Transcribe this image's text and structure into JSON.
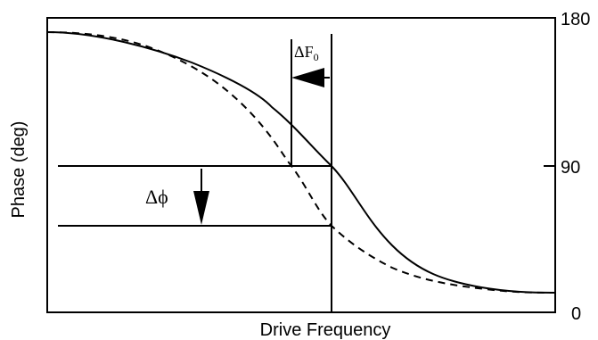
{
  "figure": {
    "y_axis_label": "Phase (deg)",
    "x_axis_label": "Drive Frequency",
    "right_ticks": [
      "180",
      "90",
      "0"
    ],
    "delta_f_label": "ΔF",
    "delta_f_subscript": "0",
    "delta_phi_label": "Δϕ"
  },
  "colors": {
    "stroke": "#000000",
    "background": "#ffffff"
  }
}
